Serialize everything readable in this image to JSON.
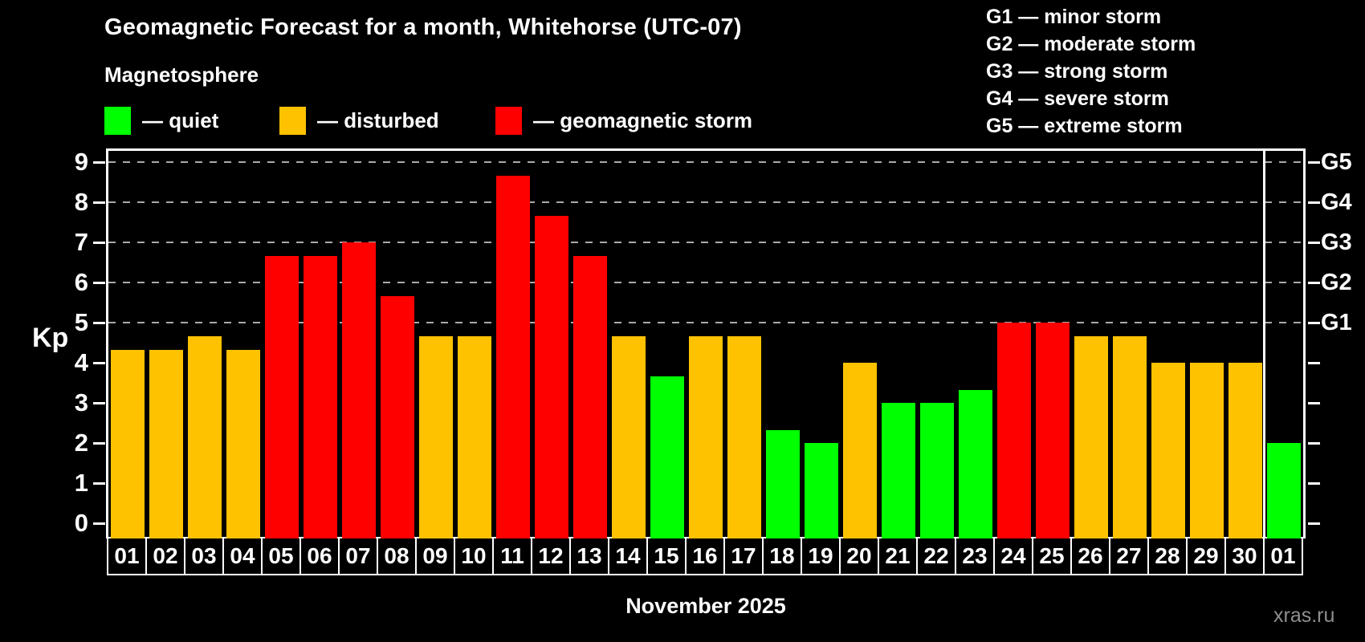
{
  "header": {
    "title": "Geomagnetic Forecast for a month, Whitehorse (UTC-07)",
    "subtitle": "Magnetosphere"
  },
  "legend": {
    "items": [
      {
        "key": "quiet",
        "label": "— quiet",
        "color": "#00ff00"
      },
      {
        "key": "disturbed",
        "label": "— disturbed",
        "color": "#ffc200"
      },
      {
        "key": "storm",
        "label": "— geomagnetic storm",
        "color": "#ff0000"
      }
    ]
  },
  "storm_scale_legend": {
    "items": [
      {
        "label": "G1 — minor storm"
      },
      {
        "label": "G2 — moderate storm"
      },
      {
        "label": "G3 — strong storm"
      },
      {
        "label": "G4 — severe storm"
      },
      {
        "label": "G5 — extreme storm"
      }
    ]
  },
  "chart_data": {
    "type": "bar",
    "title": "Geomagnetic Forecast for a month, Whitehorse (UTC-07)",
    "ylabel": "Kp",
    "xlabel": "November 2025",
    "ylim": [
      0,
      9
    ],
    "yticks": [
      0,
      1,
      2,
      3,
      4,
      5,
      6,
      7,
      8,
      9
    ],
    "gridlines_at": [
      5,
      6,
      7,
      8,
      9
    ],
    "grid": "dashed gray horizontal lines at storm levels G1–G5 only",
    "right_axis": [
      {
        "kp": 5,
        "label": "G1"
      },
      {
        "kp": 6,
        "label": "G2"
      },
      {
        "kp": 7,
        "label": "G3"
      },
      {
        "kp": 8,
        "label": "G4"
      },
      {
        "kp": 9,
        "label": "G5"
      }
    ],
    "categories": [
      "01",
      "02",
      "03",
      "04",
      "05",
      "06",
      "07",
      "08",
      "09",
      "10",
      "11",
      "12",
      "13",
      "14",
      "15",
      "16",
      "17",
      "18",
      "19",
      "20",
      "21",
      "22",
      "23",
      "24",
      "25",
      "26",
      "27",
      "28",
      "29",
      "30",
      "01"
    ],
    "values": [
      4.33,
      4.33,
      4.67,
      4.33,
      6.67,
      6.67,
      7,
      5.67,
      4.67,
      4.67,
      8.67,
      7.67,
      6.67,
      4.67,
      3.67,
      4.67,
      4.67,
      2.33,
      2,
      4,
      3,
      3,
      3.33,
      5,
      5,
      4.67,
      4.67,
      4,
      4,
      4,
      2
    ],
    "statuses": [
      "disturbed",
      "disturbed",
      "disturbed",
      "disturbed",
      "storm",
      "storm",
      "storm",
      "storm",
      "disturbed",
      "disturbed",
      "storm",
      "storm",
      "storm",
      "disturbed",
      "quiet",
      "disturbed",
      "disturbed",
      "quiet",
      "quiet",
      "disturbed",
      "quiet",
      "quiet",
      "quiet",
      "storm",
      "storm",
      "disturbed",
      "disturbed",
      "disturbed",
      "disturbed",
      "disturbed",
      "quiet"
    ],
    "month_separator_after_index": 29,
    "legend_position": "top"
  },
  "footer": {
    "watermark": "xras.ru"
  }
}
